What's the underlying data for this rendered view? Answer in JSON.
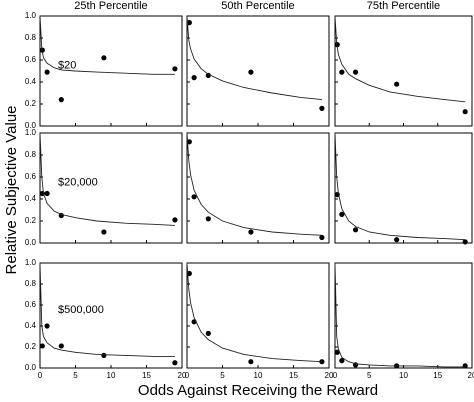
{
  "figure": {
    "ylabel": "Relative Subjective Value",
    "xlabel": "Odds Against Receiving the Reward"
  },
  "chart_data": [
    {
      "type": "scatter",
      "title": "25th Percentile",
      "annotation": "$20",
      "xlim": [
        0,
        20
      ],
      "ylim": [
        0,
        1
      ],
      "yticks": [
        {
          "value": 0,
          "label": "0.0"
        },
        {
          "value": 0.2,
          "label": "0.2"
        },
        {
          "value": 0.4,
          "label": "0.4"
        },
        {
          "value": 0.6,
          "label": "0.6"
        },
        {
          "value": 0.8,
          "label": "0.8"
        },
        {
          "value": 1,
          "label": "1.0"
        }
      ],
      "series": [
        {
          "type": "scatter",
          "x": [
            0.33,
            1,
            3,
            9,
            19
          ],
          "values": [
            0.69,
            0.49,
            0.24,
            0.62,
            0.52
          ]
        },
        {
          "type": "line",
          "x": [
            0,
            0.25,
            0.5,
            1,
            2,
            3,
            5,
            8,
            12,
            16,
            19
          ],
          "values": [
            1,
            0.7,
            0.62,
            0.57,
            0.53,
            0.51,
            0.5,
            0.49,
            0.48,
            0.47,
            0.47
          ]
        }
      ]
    },
    {
      "type": "scatter",
      "title": "50th Percentile",
      "xlim": [
        0,
        20
      ],
      "ylim": [
        0,
        1
      ],
      "series": [
        {
          "type": "scatter",
          "x": [
            0.33,
            1,
            3,
            9,
            19
          ],
          "values": [
            0.94,
            0.44,
            0.46,
            0.49,
            0.16
          ]
        },
        {
          "type": "line",
          "x": [
            0,
            0.25,
            0.5,
            1,
            2,
            3,
            5,
            8,
            12,
            16,
            19
          ],
          "values": [
            1,
            0.78,
            0.7,
            0.61,
            0.52,
            0.47,
            0.41,
            0.35,
            0.3,
            0.26,
            0.24
          ]
        }
      ]
    },
    {
      "type": "scatter",
      "title": "75th Percentile",
      "xlim": [
        0,
        20
      ],
      "ylim": [
        0,
        1
      ],
      "series": [
        {
          "type": "scatter",
          "x": [
            0.33,
            1,
            3,
            9,
            19
          ],
          "values": [
            0.74,
            0.49,
            0.49,
            0.38,
            0.13
          ]
        },
        {
          "type": "line",
          "x": [
            0,
            0.25,
            0.5,
            1,
            2,
            3,
            5,
            8,
            12,
            16,
            19
          ],
          "values": [
            1,
            0.75,
            0.65,
            0.56,
            0.47,
            0.43,
            0.37,
            0.31,
            0.27,
            0.24,
            0.22
          ]
        }
      ]
    },
    {
      "type": "scatter",
      "annotation": "$20,000",
      "xlim": [
        0,
        20
      ],
      "ylim": [
        0,
        1
      ],
      "yticks": [
        {
          "value": 0,
          "label": "0.0"
        },
        {
          "value": 0.2,
          "label": "0.2"
        },
        {
          "value": 0.4,
          "label": "0.4"
        },
        {
          "value": 0.6,
          "label": "0.6"
        },
        {
          "value": 0.8,
          "label": "0.8"
        },
        {
          "value": 1,
          "label": "1.0"
        }
      ],
      "series": [
        {
          "type": "scatter",
          "x": [
            0.33,
            1,
            3,
            9,
            19
          ],
          "values": [
            0.45,
            0.45,
            0.25,
            0.1,
            0.21
          ]
        },
        {
          "type": "line",
          "x": [
            0,
            0.25,
            0.5,
            1,
            2,
            3,
            5,
            8,
            12,
            16,
            19
          ],
          "values": [
            1,
            0.6,
            0.45,
            0.36,
            0.29,
            0.26,
            0.23,
            0.2,
            0.18,
            0.17,
            0.16
          ]
        }
      ]
    },
    {
      "type": "scatter",
      "xlim": [
        0,
        20
      ],
      "ylim": [
        0,
        1
      ],
      "series": [
        {
          "type": "scatter",
          "x": [
            0.33,
            1,
            3,
            9,
            19
          ],
          "values": [
            0.92,
            0.42,
            0.22,
            0.1,
            0.05
          ]
        },
        {
          "type": "line",
          "x": [
            0,
            0.25,
            0.5,
            1,
            2,
            3,
            5,
            8,
            12,
            16,
            19
          ],
          "values": [
            1,
            0.75,
            0.62,
            0.48,
            0.35,
            0.28,
            0.2,
            0.14,
            0.1,
            0.08,
            0.07
          ]
        }
      ]
    },
    {
      "type": "scatter",
      "xlim": [
        0,
        20
      ],
      "ylim": [
        0,
        1
      ],
      "series": [
        {
          "type": "scatter",
          "x": [
            0.33,
            1,
            3,
            9,
            19
          ],
          "values": [
            0.44,
            0.26,
            0.12,
            0.03,
            0.01
          ]
        },
        {
          "type": "line",
          "x": [
            0,
            0.25,
            0.5,
            1,
            2,
            3,
            5,
            8,
            12,
            16,
            19
          ],
          "values": [
            1,
            0.6,
            0.45,
            0.31,
            0.2,
            0.15,
            0.1,
            0.07,
            0.05,
            0.04,
            0.03
          ]
        }
      ]
    },
    {
      "type": "scatter",
      "annotation": "$500,000",
      "xlim": [
        0,
        20
      ],
      "ylim": [
        0,
        1
      ],
      "yticks": [
        {
          "value": 0,
          "label": "0.0"
        },
        {
          "value": 0.2,
          "label": "0.2"
        },
        {
          "value": 0.4,
          "label": "0.4"
        },
        {
          "value": 0.6,
          "label": "0.6"
        },
        {
          "value": 0.8,
          "label": "0.8"
        },
        {
          "value": 1,
          "label": "1.0"
        }
      ],
      "xticks": [
        0,
        5,
        10,
        15,
        20
      ],
      "series": [
        {
          "type": "scatter",
          "x": [
            0.33,
            1,
            3,
            9,
            19
          ],
          "values": [
            0.21,
            0.4,
            0.21,
            0.12,
            0.05
          ]
        },
        {
          "type": "line",
          "x": [
            0,
            0.25,
            0.5,
            1,
            2,
            3,
            5,
            8,
            12,
            16,
            19
          ],
          "values": [
            1,
            0.4,
            0.3,
            0.24,
            0.19,
            0.17,
            0.15,
            0.13,
            0.12,
            0.11,
            0.11
          ]
        }
      ]
    },
    {
      "type": "scatter",
      "xlim": [
        0,
        20
      ],
      "ylim": [
        0,
        1
      ],
      "xticks": [
        0,
        5,
        10,
        15,
        20
      ],
      "series": [
        {
          "type": "scatter",
          "x": [
            0.33,
            1,
            3,
            9,
            19
          ],
          "values": [
            0.9,
            0.44,
            0.33,
            0.06,
            0.06
          ]
        },
        {
          "type": "line",
          "x": [
            0,
            0.25,
            0.5,
            1,
            2,
            3,
            5,
            8,
            12,
            16,
            19
          ],
          "values": [
            1,
            0.75,
            0.62,
            0.48,
            0.34,
            0.27,
            0.19,
            0.13,
            0.09,
            0.07,
            0.06
          ]
        }
      ]
    },
    {
      "type": "scatter",
      "xlim": [
        0,
        20
      ],
      "ylim": [
        0,
        1
      ],
      "xticks": [
        0,
        5,
        10,
        15,
        20
      ],
      "series": [
        {
          "type": "scatter",
          "x": [
            0.33,
            1,
            3,
            9,
            19
          ],
          "values": [
            0.15,
            0.07,
            0.03,
            0.02,
            0.02
          ]
        },
        {
          "type": "line",
          "x": [
            0,
            0.25,
            0.5,
            1,
            2,
            3,
            5,
            8,
            12,
            16,
            19
          ],
          "values": [
            1,
            0.3,
            0.18,
            0.1,
            0.06,
            0.04,
            0.03,
            0.02,
            0.02,
            0.01,
            0.01
          ]
        }
      ]
    }
  ]
}
